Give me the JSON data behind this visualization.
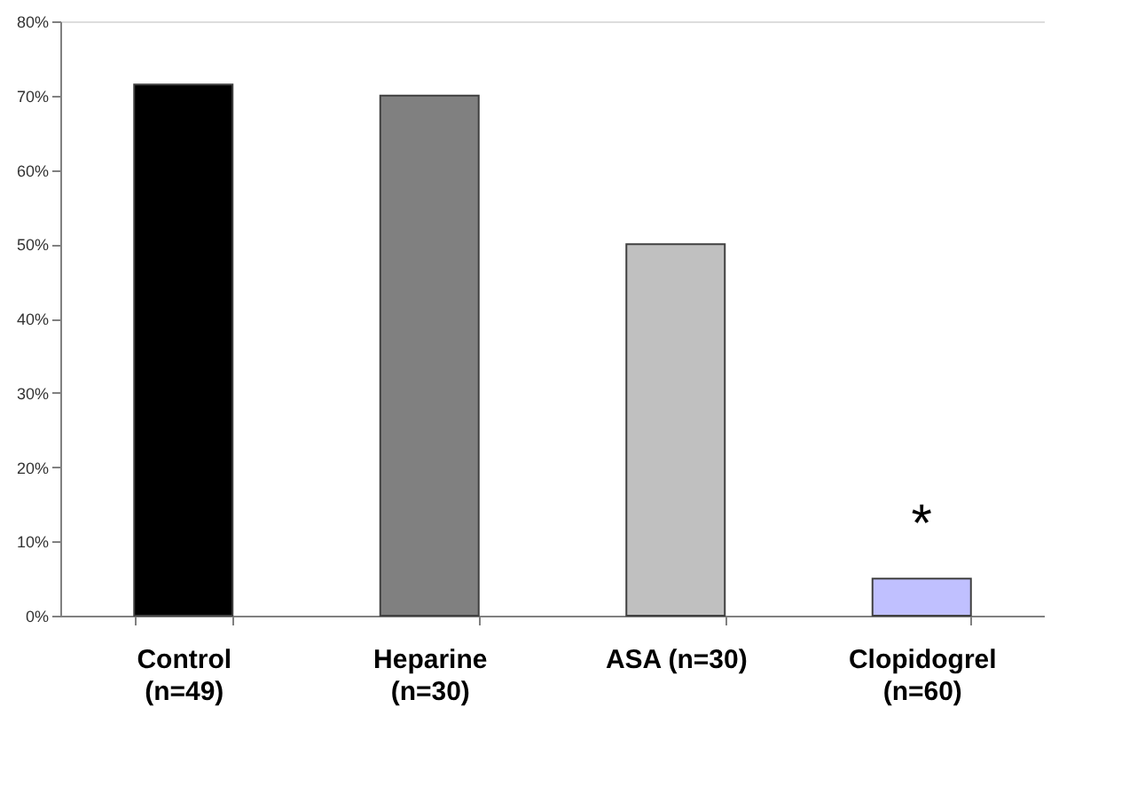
{
  "chart_data": {
    "type": "bar",
    "categories": [
      "Control\n(n=49)",
      "Heparine\n(n=30)",
      "ASA (n=30)",
      "Clopidogrel\n(n=60)"
    ],
    "values": [
      71.5,
      70,
      50,
      5
    ],
    "colors": [
      "#000000",
      "#808080",
      "#c0c0c0",
      "#c0c0ff"
    ],
    "ylim": [
      0,
      80
    ],
    "yticks": [
      {
        "value": 0,
        "label": "0%"
      },
      {
        "value": 10,
        "label": "10%"
      },
      {
        "value": 20,
        "label": "20%"
      },
      {
        "value": 30,
        "label": "30%"
      },
      {
        "value": 40,
        "label": "40%"
      },
      {
        "value": 50,
        "label": "50%"
      },
      {
        "value": 60,
        "label": "60%"
      },
      {
        "value": 70,
        "label": "70%"
      },
      {
        "value": 80,
        "label": "80%"
      }
    ],
    "annotations": [
      "*"
    ],
    "grid": false
  }
}
